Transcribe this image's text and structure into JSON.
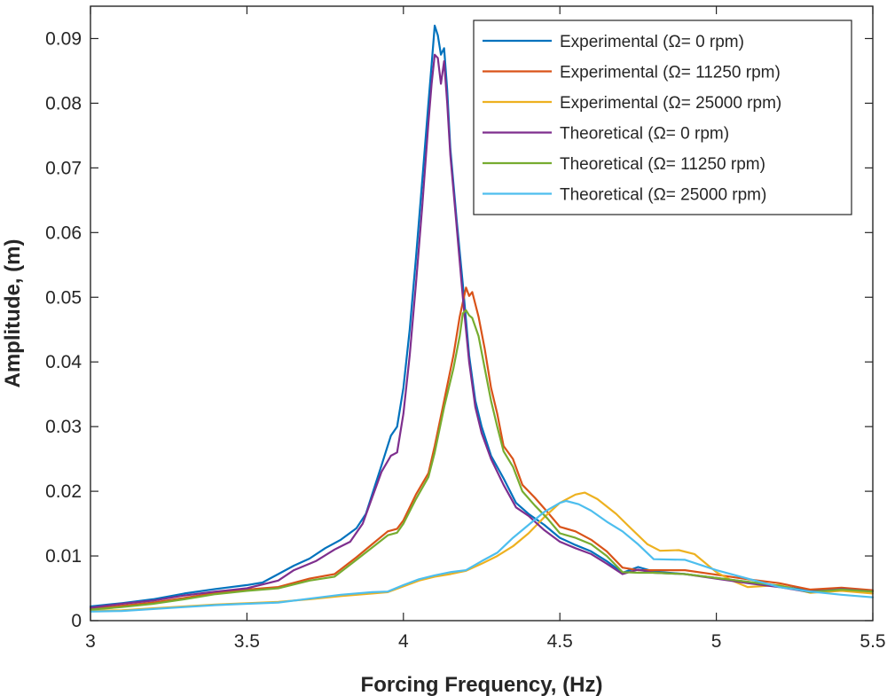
{
  "chart_data": {
    "type": "line",
    "title": "",
    "xlabel": "Forcing Frequency, (Hz)",
    "ylabel": "Amplitude, (m)",
    "xlim": [
      3,
      5.5
    ],
    "ylim": [
      0,
      0.095
    ],
    "xticks": [
      3,
      3.5,
      4,
      4.5,
      5,
      5.5
    ],
    "xtick_labels": [
      "3",
      "3.5",
      "4",
      "4.5",
      "5",
      "5.5"
    ],
    "yticks": [
      0,
      0.01,
      0.02,
      0.03,
      0.04,
      0.05,
      0.06,
      0.07,
      0.08,
      0.09
    ],
    "ytick_labels": [
      "0",
      "0.01",
      "0.02",
      "0.03",
      "0.04",
      "0.05",
      "0.06",
      "0.07",
      "0.08",
      "0.09"
    ],
    "grid": false,
    "legend_position": "top-right",
    "series": [
      {
        "name": "Experimental (Ω= 0 rpm)",
        "color": "#0072BD",
        "points": [
          [
            3.0,
            0.0022
          ],
          [
            3.1,
            0.0027
          ],
          [
            3.2,
            0.0033
          ],
          [
            3.3,
            0.0042
          ],
          [
            3.4,
            0.0049
          ],
          [
            3.5,
            0.0055
          ],
          [
            3.55,
            0.0059
          ],
          [
            3.6,
            0.0072
          ],
          [
            3.65,
            0.0085
          ],
          [
            3.7,
            0.0096
          ],
          [
            3.75,
            0.0112
          ],
          [
            3.8,
            0.0125
          ],
          [
            3.85,
            0.0143
          ],
          [
            3.88,
            0.0165
          ],
          [
            3.9,
            0.0195
          ],
          [
            3.93,
            0.024
          ],
          [
            3.96,
            0.0286
          ],
          [
            3.98,
            0.03
          ],
          [
            4.0,
            0.036
          ],
          [
            4.02,
            0.045
          ],
          [
            4.04,
            0.056
          ],
          [
            4.06,
            0.068
          ],
          [
            4.08,
            0.08
          ],
          [
            4.09,
            0.086
          ],
          [
            4.1,
            0.092
          ],
          [
            4.11,
            0.0905
          ],
          [
            4.12,
            0.0875
          ],
          [
            4.13,
            0.0885
          ],
          [
            4.14,
            0.082
          ],
          [
            4.15,
            0.073
          ],
          [
            4.17,
            0.062
          ],
          [
            4.19,
            0.052
          ],
          [
            4.21,
            0.041
          ],
          [
            4.23,
            0.034
          ],
          [
            4.25,
            0.03
          ],
          [
            4.28,
            0.0255
          ],
          [
            4.32,
            0.022
          ],
          [
            4.36,
            0.0182
          ],
          [
            4.4,
            0.0165
          ],
          [
            4.45,
            0.0148
          ],
          [
            4.5,
            0.0128
          ],
          [
            4.55,
            0.0117
          ],
          [
            4.6,
            0.0107
          ],
          [
            4.65,
            0.0092
          ],
          [
            4.7,
            0.0074
          ],
          [
            4.75,
            0.0083
          ],
          [
            4.8,
            0.0076
          ],
          [
            4.9,
            0.0072
          ],
          [
            5.0,
            0.0066
          ],
          [
            5.1,
            0.006
          ],
          [
            5.2,
            0.0054
          ],
          [
            5.3,
            0.0046
          ],
          [
            5.4,
            0.005
          ],
          [
            5.5,
            0.0046
          ]
        ]
      },
      {
        "name": "Experimental (Ω= 11250 rpm)",
        "color": "#D95319",
        "points": [
          [
            3.0,
            0.0018
          ],
          [
            3.1,
            0.0023
          ],
          [
            3.2,
            0.0028
          ],
          [
            3.3,
            0.0035
          ],
          [
            3.4,
            0.0043
          ],
          [
            3.5,
            0.0048
          ],
          [
            3.6,
            0.0052
          ],
          [
            3.7,
            0.0065
          ],
          [
            3.78,
            0.0072
          ],
          [
            3.85,
            0.0098
          ],
          [
            3.9,
            0.0118
          ],
          [
            3.95,
            0.0138
          ],
          [
            3.98,
            0.0142
          ],
          [
            4.0,
            0.0155
          ],
          [
            4.04,
            0.0195
          ],
          [
            4.08,
            0.0228
          ],
          [
            4.1,
            0.027
          ],
          [
            4.13,
            0.034
          ],
          [
            4.16,
            0.041
          ],
          [
            4.18,
            0.047
          ],
          [
            4.2,
            0.0515
          ],
          [
            4.21,
            0.0502
          ],
          [
            4.22,
            0.0508
          ],
          [
            4.24,
            0.047
          ],
          [
            4.26,
            0.042
          ],
          [
            4.28,
            0.036
          ],
          [
            4.3,
            0.032
          ],
          [
            4.32,
            0.027
          ],
          [
            4.35,
            0.025
          ],
          [
            4.38,
            0.021
          ],
          [
            4.42,
            0.019
          ],
          [
            4.46,
            0.0168
          ],
          [
            4.5,
            0.0145
          ],
          [
            4.55,
            0.0138
          ],
          [
            4.6,
            0.0125
          ],
          [
            4.65,
            0.0107
          ],
          [
            4.7,
            0.0082
          ],
          [
            4.75,
            0.0078
          ],
          [
            4.8,
            0.0078
          ],
          [
            4.9,
            0.0078
          ],
          [
            5.0,
            0.0071
          ],
          [
            5.1,
            0.0064
          ],
          [
            5.2,
            0.0058
          ],
          [
            5.3,
            0.0048
          ],
          [
            5.4,
            0.0051
          ],
          [
            5.5,
            0.0047
          ]
        ]
      },
      {
        "name": "Experimental (Ω= 25000 rpm)",
        "color": "#EDB120",
        "points": [
          [
            3.0,
            0.0015
          ],
          [
            3.1,
            0.0016
          ],
          [
            3.2,
            0.0019
          ],
          [
            3.3,
            0.0022
          ],
          [
            3.4,
            0.0025
          ],
          [
            3.5,
            0.0027
          ],
          [
            3.6,
            0.0029
          ],
          [
            3.7,
            0.0033
          ],
          [
            3.8,
            0.0038
          ],
          [
            3.9,
            0.0042
          ],
          [
            3.95,
            0.0044
          ],
          [
            4.0,
            0.0053
          ],
          [
            4.05,
            0.0062
          ],
          [
            4.1,
            0.0068
          ],
          [
            4.15,
            0.0072
          ],
          [
            4.2,
            0.0077
          ],
          [
            4.25,
            0.0088
          ],
          [
            4.3,
            0.01
          ],
          [
            4.35,
            0.0115
          ],
          [
            4.4,
            0.0135
          ],
          [
            4.45,
            0.016
          ],
          [
            4.5,
            0.0182
          ],
          [
            4.55,
            0.0195
          ],
          [
            4.58,
            0.0198
          ],
          [
            4.62,
            0.0188
          ],
          [
            4.68,
            0.0165
          ],
          [
            4.72,
            0.0146
          ],
          [
            4.78,
            0.0118
          ],
          [
            4.82,
            0.0108
          ],
          [
            4.88,
            0.0109
          ],
          [
            4.93,
            0.0103
          ],
          [
            5.0,
            0.0075
          ],
          [
            5.05,
            0.0062
          ],
          [
            5.1,
            0.0052
          ],
          [
            5.2,
            0.0055
          ],
          [
            5.3,
            0.0043
          ],
          [
            5.4,
            0.0046
          ],
          [
            5.5,
            0.0042
          ]
        ]
      },
      {
        "name": "Theoretical (Ω= 0 rpm)",
        "color": "#7E2F8E",
        "points": [
          [
            3.0,
            0.002
          ],
          [
            3.1,
            0.0026
          ],
          [
            3.2,
            0.0031
          ],
          [
            3.3,
            0.0039
          ],
          [
            3.4,
            0.0045
          ],
          [
            3.5,
            0.005
          ],
          [
            3.6,
            0.0062
          ],
          [
            3.65,
            0.0078
          ],
          [
            3.72,
            0.0092
          ],
          [
            3.78,
            0.011
          ],
          [
            3.83,
            0.0122
          ],
          [
            3.87,
            0.015
          ],
          [
            3.9,
            0.019
          ],
          [
            3.93,
            0.023
          ],
          [
            3.96,
            0.0255
          ],
          [
            3.98,
            0.026
          ],
          [
            4.0,
            0.032
          ],
          [
            4.02,
            0.041
          ],
          [
            4.04,
            0.052
          ],
          [
            4.06,
            0.064
          ],
          [
            4.08,
            0.077
          ],
          [
            4.09,
            0.083
          ],
          [
            4.1,
            0.0875
          ],
          [
            4.11,
            0.087
          ],
          [
            4.12,
            0.083
          ],
          [
            4.13,
            0.0865
          ],
          [
            4.14,
            0.08
          ],
          [
            4.15,
            0.072
          ],
          [
            4.17,
            0.061
          ],
          [
            4.19,
            0.05
          ],
          [
            4.21,
            0.04
          ],
          [
            4.23,
            0.033
          ],
          [
            4.25,
            0.029
          ],
          [
            4.28,
            0.025
          ],
          [
            4.32,
            0.021
          ],
          [
            4.36,
            0.0175
          ],
          [
            4.4,
            0.0162
          ],
          [
            4.45,
            0.014
          ],
          [
            4.5,
            0.0122
          ],
          [
            4.55,
            0.0112
          ],
          [
            4.6,
            0.0103
          ],
          [
            4.65,
            0.0088
          ],
          [
            4.7,
            0.0072
          ],
          [
            4.75,
            0.0079
          ],
          [
            4.8,
            0.0074
          ],
          [
            4.9,
            0.0072
          ],
          [
            5.0,
            0.0065
          ],
          [
            5.1,
            0.0058
          ],
          [
            5.2,
            0.0052
          ],
          [
            5.3,
            0.0044
          ],
          [
            5.4,
            0.0049
          ],
          [
            5.5,
            0.0045
          ]
        ]
      },
      {
        "name": "Theoretical (Ω= 11250 rpm)",
        "color": "#77AC30",
        "points": [
          [
            3.0,
            0.0017
          ],
          [
            3.1,
            0.0021
          ],
          [
            3.2,
            0.0026
          ],
          [
            3.3,
            0.0033
          ],
          [
            3.4,
            0.0041
          ],
          [
            3.5,
            0.0046
          ],
          [
            3.6,
            0.005
          ],
          [
            3.7,
            0.0062
          ],
          [
            3.78,
            0.0068
          ],
          [
            3.85,
            0.0094
          ],
          [
            3.9,
            0.0113
          ],
          [
            3.95,
            0.0132
          ],
          [
            3.98,
            0.0136
          ],
          [
            4.0,
            0.015
          ],
          [
            4.04,
            0.0188
          ],
          [
            4.08,
            0.0222
          ],
          [
            4.1,
            0.026
          ],
          [
            4.13,
            0.033
          ],
          [
            4.16,
            0.039
          ],
          [
            4.18,
            0.044
          ],
          [
            4.19,
            0.0475
          ],
          [
            4.2,
            0.048
          ],
          [
            4.21,
            0.0472
          ],
          [
            4.22,
            0.0468
          ],
          [
            4.24,
            0.044
          ],
          [
            4.26,
            0.039
          ],
          [
            4.28,
            0.034
          ],
          [
            4.3,
            0.03
          ],
          [
            4.32,
            0.0262
          ],
          [
            4.35,
            0.0238
          ],
          [
            4.38,
            0.02
          ],
          [
            4.42,
            0.0178
          ],
          [
            4.46,
            0.0158
          ],
          [
            4.5,
            0.0135
          ],
          [
            4.55,
            0.0128
          ],
          [
            4.6,
            0.0118
          ],
          [
            4.65,
            0.01
          ],
          [
            4.7,
            0.0075
          ],
          [
            4.75,
            0.0074
          ],
          [
            4.8,
            0.0074
          ],
          [
            4.9,
            0.0072
          ],
          [
            5.0,
            0.0066
          ],
          [
            5.1,
            0.006
          ],
          [
            5.2,
            0.0054
          ],
          [
            5.3,
            0.0044
          ],
          [
            5.4,
            0.0048
          ],
          [
            5.5,
            0.0045
          ]
        ]
      },
      {
        "name": "Theoretical (Ω= 25000 rpm)",
        "color": "#4DBEEE",
        "points": [
          [
            3.0,
            0.0014
          ],
          [
            3.1,
            0.0015
          ],
          [
            3.2,
            0.0018
          ],
          [
            3.3,
            0.0021
          ],
          [
            3.4,
            0.0024
          ],
          [
            3.5,
            0.0026
          ],
          [
            3.6,
            0.0028
          ],
          [
            3.7,
            0.0034
          ],
          [
            3.8,
            0.004
          ],
          [
            3.9,
            0.0044
          ],
          [
            3.95,
            0.0045
          ],
          [
            4.0,
            0.0055
          ],
          [
            4.05,
            0.0064
          ],
          [
            4.1,
            0.007
          ],
          [
            4.15,
            0.0075
          ],
          [
            4.2,
            0.0078
          ],
          [
            4.25,
            0.0092
          ],
          [
            4.3,
            0.0105
          ],
          [
            4.35,
            0.0128
          ],
          [
            4.4,
            0.0148
          ],
          [
            4.45,
            0.0168
          ],
          [
            4.5,
            0.0182
          ],
          [
            4.52,
            0.0185
          ],
          [
            4.56,
            0.018
          ],
          [
            4.6,
            0.017
          ],
          [
            4.65,
            0.0153
          ],
          [
            4.7,
            0.0138
          ],
          [
            4.75,
            0.0118
          ],
          [
            4.8,
            0.0095
          ],
          [
            4.9,
            0.0094
          ],
          [
            5.0,
            0.0078
          ],
          [
            5.1,
            0.0065
          ],
          [
            5.2,
            0.0052
          ],
          [
            5.3,
            0.0045
          ],
          [
            5.4,
            0.004
          ],
          [
            5.5,
            0.0036
          ]
        ]
      }
    ]
  }
}
